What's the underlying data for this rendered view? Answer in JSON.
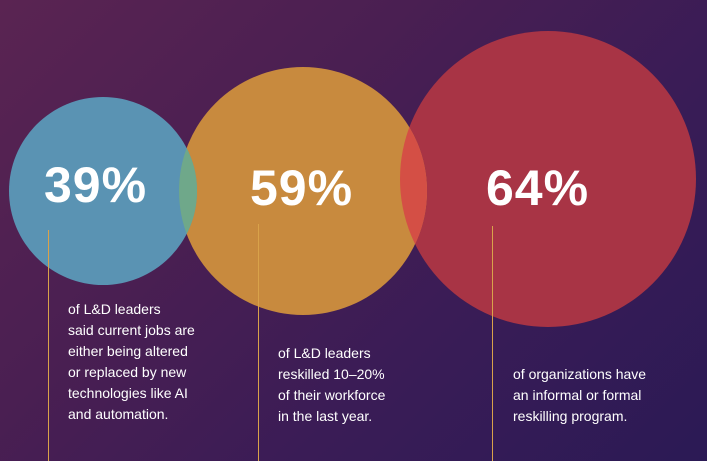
{
  "colors": {
    "circle_blue": "#5a93b3",
    "circle_orange": "#c88a3e",
    "circle_red": "#a83445",
    "overlap_blue_orange": "#6fa88a",
    "overlap_orange_red": "#d44f45",
    "line_color": "#d9a24a"
  },
  "stats": [
    {
      "value": "39%",
      "description": "of L&D leaders\nsaid current jobs are\neither being altered\nor replaced by new\ntechnologies like AI\nand automation."
    },
    {
      "value": "59%",
      "description": "of L&D leaders\nreskilled 10–20%\nof their workforce\nin the last year."
    },
    {
      "value": "64%",
      "description": "of organizations have\nan informal or formal\nreskilling program."
    }
  ]
}
